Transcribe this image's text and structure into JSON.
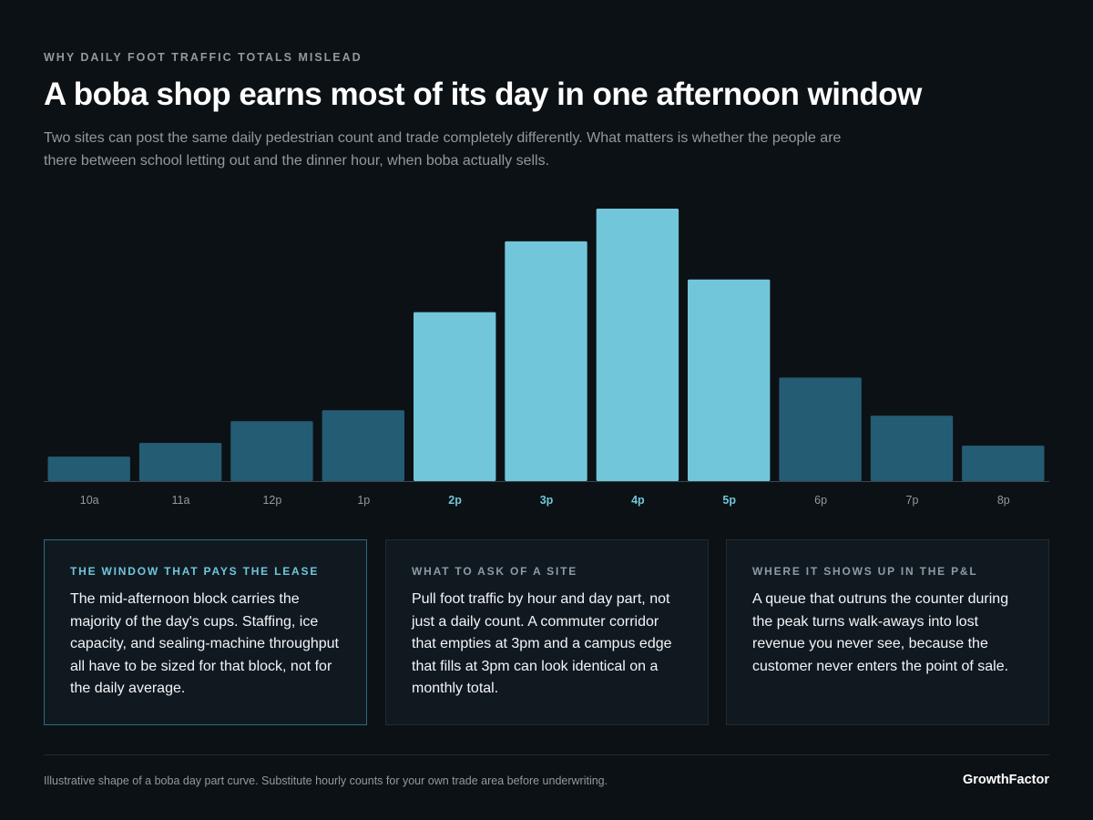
{
  "header": {
    "eyebrow": "WHY DAILY FOOT TRAFFIC TOTALS MISLEAD",
    "title": "A boba shop earns most of its day in one afternoon window",
    "subtitle": "Two sites can post the same daily pedestrian count and trade completely differently. What matters is whether the people are there between school letting out and the dinner hour, when boba actually sells."
  },
  "chart_data": {
    "type": "bar",
    "categories": [
      "10a",
      "11a",
      "12p",
      "1p",
      "2p",
      "3p",
      "4p",
      "5p",
      "6p",
      "7p",
      "8p"
    ],
    "values": [
      9,
      14,
      22,
      26,
      62,
      88,
      100,
      74,
      38,
      24,
      13
    ],
    "highlighted": [
      "2p",
      "3p",
      "4p",
      "5p"
    ],
    "ylim": [
      0,
      100
    ],
    "grid": false,
    "colors": {
      "highlight": "#72c6da",
      "base": "#245c73",
      "axis": "#3a464e",
      "tick": "#8f9aa2",
      "tick_highlight": "#72c6da"
    }
  },
  "cards": [
    {
      "label": "THE WINDOW THAT PAYS THE LEASE",
      "body": "The mid-afternoon block carries the majority of the day's cups. Staffing, ice capacity, and sealing-machine throughput all have to be sized for that block, not for the daily average."
    },
    {
      "label": "WHAT TO ASK OF A SITE",
      "body": "Pull foot traffic by hour and day part, not just a daily count. A commuter corridor that empties at 3pm and a campus edge that fills at 3pm can look identical on a monthly total."
    },
    {
      "label": "WHERE IT SHOWS UP IN THE P&L",
      "body": "A queue that outruns the counter during the peak turns walk-aways into lost revenue you never see, because the customer never enters the point of sale."
    }
  ],
  "footer": {
    "note": "Illustrative shape of a boba day part curve. Substitute hourly counts for your own trade area before underwriting.",
    "brand": "GrowthFactor"
  }
}
